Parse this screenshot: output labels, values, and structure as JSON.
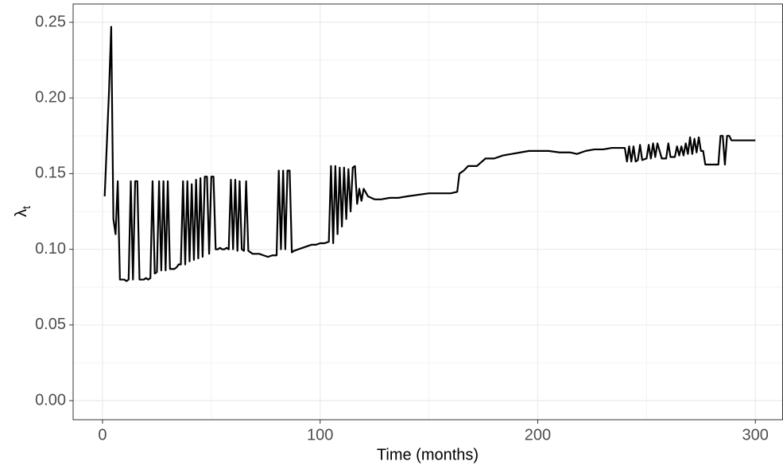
{
  "chart_data": {
    "type": "line",
    "x_label": "Time (months)",
    "y_label": "λ",
    "y_label_subscript": "t",
    "xlim": [
      -13.5,
      312.7
    ],
    "ylim": [
      -0.0126,
      0.2621
    ],
    "xticks": [
      0,
      100,
      200,
      300
    ],
    "yticks": [
      {
        "value": 0,
        "label": "0.00"
      },
      0.05,
      {
        "value": 0.1,
        "label": "0.10"
      },
      0.15,
      {
        "value": 0.2,
        "label": "0.20"
      },
      0.25
    ],
    "grid": true,
    "color": "#000000",
    "x": [
      1,
      2,
      3,
      4,
      5,
      6,
      7,
      8,
      9,
      10,
      11,
      12,
      13,
      14,
      15,
      16,
      17,
      18,
      19,
      20,
      21,
      22,
      23,
      24,
      25,
      26,
      27,
      28,
      29,
      30,
      31,
      32,
      33,
      34,
      35,
      36,
      37,
      38,
      39,
      40,
      41,
      42,
      43,
      44,
      45,
      46,
      47,
      48,
      49,
      50,
      51,
      52,
      53,
      54,
      55,
      56,
      57,
      58,
      59,
      60,
      61,
      62,
      63,
      64,
      65,
      66,
      67,
      68,
      69,
      70,
      72,
      74,
      76,
      78,
      80,
      81,
      82,
      83,
      84,
      85,
      86,
      87,
      88,
      90,
      92,
      94,
      96,
      98,
      100,
      102,
      104,
      105,
      106,
      107,
      108,
      109,
      110,
      111,
      112,
      113,
      114,
      115,
      116,
      117,
      118,
      119,
      120,
      122,
      125,
      128,
      132,
      136,
      140,
      145,
      150,
      155,
      160,
      163,
      164,
      166,
      168,
      172,
      176,
      180,
      184,
      188,
      192,
      196,
      200,
      205,
      210,
      215,
      218,
      222,
      226,
      230,
      234,
      238,
      240,
      241,
      242,
      243,
      244,
      245,
      246,
      247,
      248,
      250,
      251,
      252,
      253,
      254,
      255,
      257,
      259,
      260,
      261,
      263,
      264,
      265,
      266,
      267,
      268,
      269,
      270,
      271,
      272,
      273,
      274,
      275,
      276,
      277,
      280,
      283,
      284,
      285,
      286,
      287,
      288,
      289,
      291,
      295,
      300
    ],
    "values": [
      0.135,
      0.17,
      0.205,
      0.247,
      0.12,
      0.11,
      0.145,
      0.08,
      0.08,
      0.08,
      0.079,
      0.08,
      0.145,
      0.08,
      0.145,
      0.145,
      0.08,
      0.08,
      0.08,
      0.081,
      0.08,
      0.081,
      0.145,
      0.084,
      0.085,
      0.145,
      0.086,
      0.145,
      0.086,
      0.145,
      0.087,
      0.087,
      0.087,
      0.088,
      0.09,
      0.09,
      0.145,
      0.09,
      0.145,
      0.092,
      0.143,
      0.093,
      0.146,
      0.094,
      0.147,
      0.095,
      0.148,
      0.148,
      0.097,
      0.148,
      0.148,
      0.1,
      0.1,
      0.101,
      0.1,
      0.1,
      0.101,
      0.1,
      0.146,
      0.1,
      0.146,
      0.099,
      0.145,
      0.1,
      0.099,
      0.145,
      0.099,
      0.098,
      0.097,
      0.097,
      0.097,
      0.096,
      0.095,
      0.096,
      0.096,
      0.152,
      0.1,
      0.152,
      0.1,
      0.152,
      0.152,
      0.098,
      0.099,
      0.1,
      0.101,
      0.102,
      0.103,
      0.103,
      0.104,
      0.104,
      0.105,
      0.155,
      0.104,
      0.155,
      0.11,
      0.154,
      0.115,
      0.154,
      0.12,
      0.153,
      0.125,
      0.154,
      0.155,
      0.13,
      0.14,
      0.132,
      0.14,
      0.135,
      0.133,
      0.133,
      0.134,
      0.134,
      0.135,
      0.136,
      0.137,
      0.137,
      0.137,
      0.138,
      0.15,
      0.152,
      0.155,
      0.155,
      0.16,
      0.16,
      0.162,
      0.163,
      0.164,
      0.165,
      0.165,
      0.165,
      0.164,
      0.164,
      0.163,
      0.165,
      0.166,
      0.166,
      0.167,
      0.167,
      0.167,
      0.158,
      0.168,
      0.158,
      0.168,
      0.158,
      0.159,
      0.169,
      0.159,
      0.16,
      0.169,
      0.16,
      0.17,
      0.161,
      0.17,
      0.16,
      0.16,
      0.17,
      0.161,
      0.161,
      0.168,
      0.162,
      0.168,
      0.162,
      0.17,
      0.163,
      0.174,
      0.163,
      0.173,
      0.164,
      0.174,
      0.165,
      0.165,
      0.156,
      0.156,
      0.156,
      0.175,
      0.175,
      0.156,
      0.175,
      0.175,
      0.172,
      0.172,
      0.172,
      0.172
    ]
  }
}
